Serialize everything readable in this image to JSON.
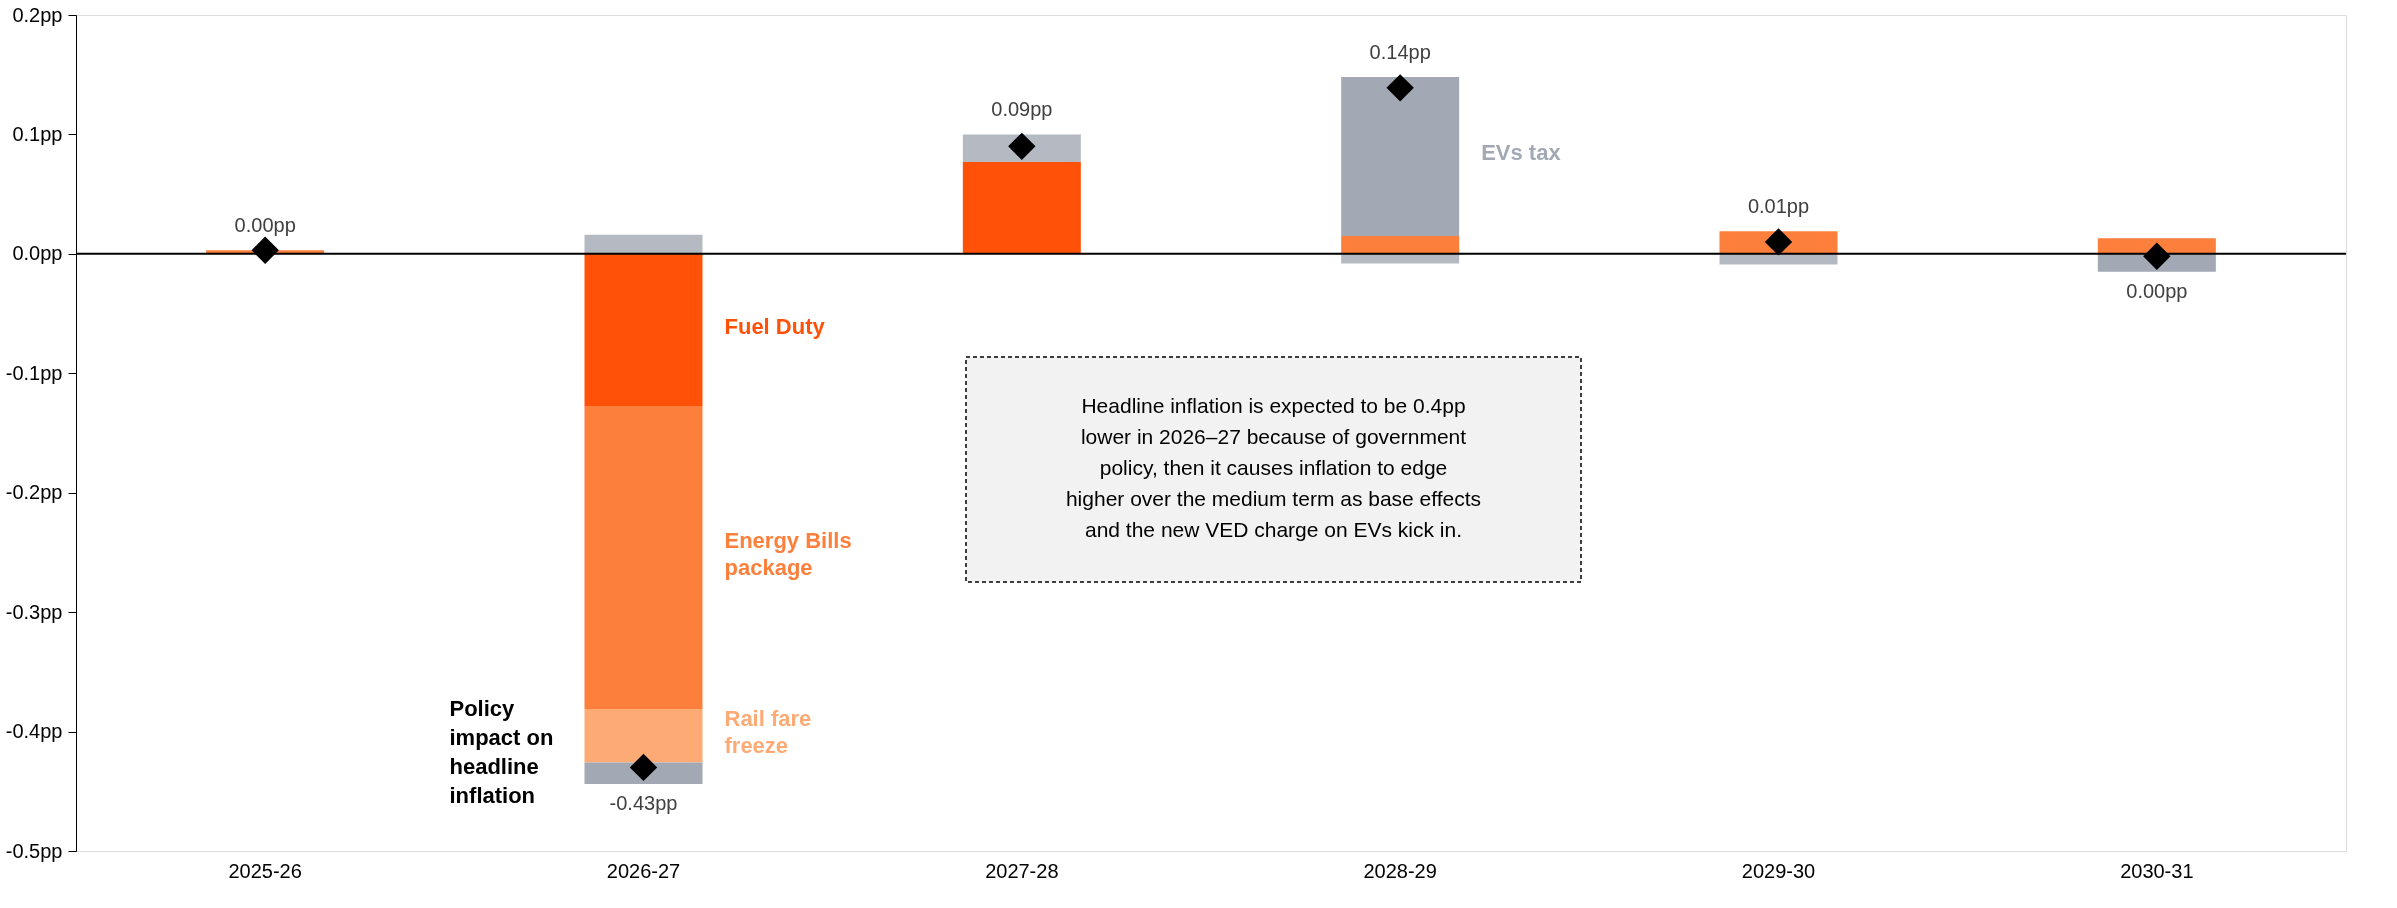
{
  "chart_data": {
    "type": "bar",
    "stacked": true,
    "categories": [
      "2025-26",
      "2026-27",
      "2027-28",
      "2028-29",
      "2029-30",
      "2030-31"
    ],
    "series": [
      {
        "name": "Fuel Duty",
        "color": "#ff5208",
        "values": [
          null,
          -0.128,
          0.077,
          null,
          null,
          null
        ]
      },
      {
        "name": "Energy Bills package",
        "color": "#fd7f3c",
        "values": [
          0.003,
          -0.253,
          null,
          0.015,
          0.019,
          0.013
        ]
      },
      {
        "name": "Rail fare freeze",
        "color": "#fdaa75",
        "values": [
          null,
          -0.045,
          null,
          null,
          null,
          null
        ]
      },
      {
        "name": "EVs tax",
        "color": "#a2a9b4",
        "values": [
          null,
          -0.018,
          null,
          0.133,
          null,
          -0.015
        ]
      },
      {
        "color": "#b5bac2",
        "values": [
          null,
          0.016,
          0.023,
          -0.008,
          -0.009,
          null
        ]
      },
      {
        "name": "Policy impact on headline inflation",
        "type": "scatter",
        "marker": "diamond",
        "color": "#000000",
        "values": [
          0.003,
          -0.43,
          0.09,
          0.139,
          0.01,
          -0.002
        ],
        "value_labels": [
          "0.00pp",
          "-0.43pp",
          "0.09pp",
          "0.14pp",
          "0.01pp",
          "0.00pp"
        ]
      }
    ],
    "ylim": [
      -0.5,
      0.2
    ],
    "yticks": [
      {
        "value": -0.5,
        "label": "-0.5pp"
      },
      {
        "value": -0.4,
        "label": "-0.4pp"
      },
      {
        "value": -0.3,
        "label": "-0.3pp"
      },
      {
        "value": -0.2,
        "label": "-0.2pp"
      },
      {
        "value": -0.1,
        "label": "-0.1pp"
      },
      {
        "value": 0,
        "label": "0.0pp"
      },
      {
        "value": 0.1,
        "label": "0.1pp"
      },
      {
        "value": 0.2,
        "label": "0.2pp"
      }
    ],
    "grid": false,
    "legend": false,
    "ref_lines": [
      {
        "axis": "y",
        "value": 0,
        "color": "#000000"
      }
    ],
    "annotations": [
      "Headline inflation is expected to be 0.4pp lower in 2026–27 because of government policy, then it causes inflation to edge higher over the medium term as base effects and the new VED charge on EVs kick in."
    ]
  }
}
